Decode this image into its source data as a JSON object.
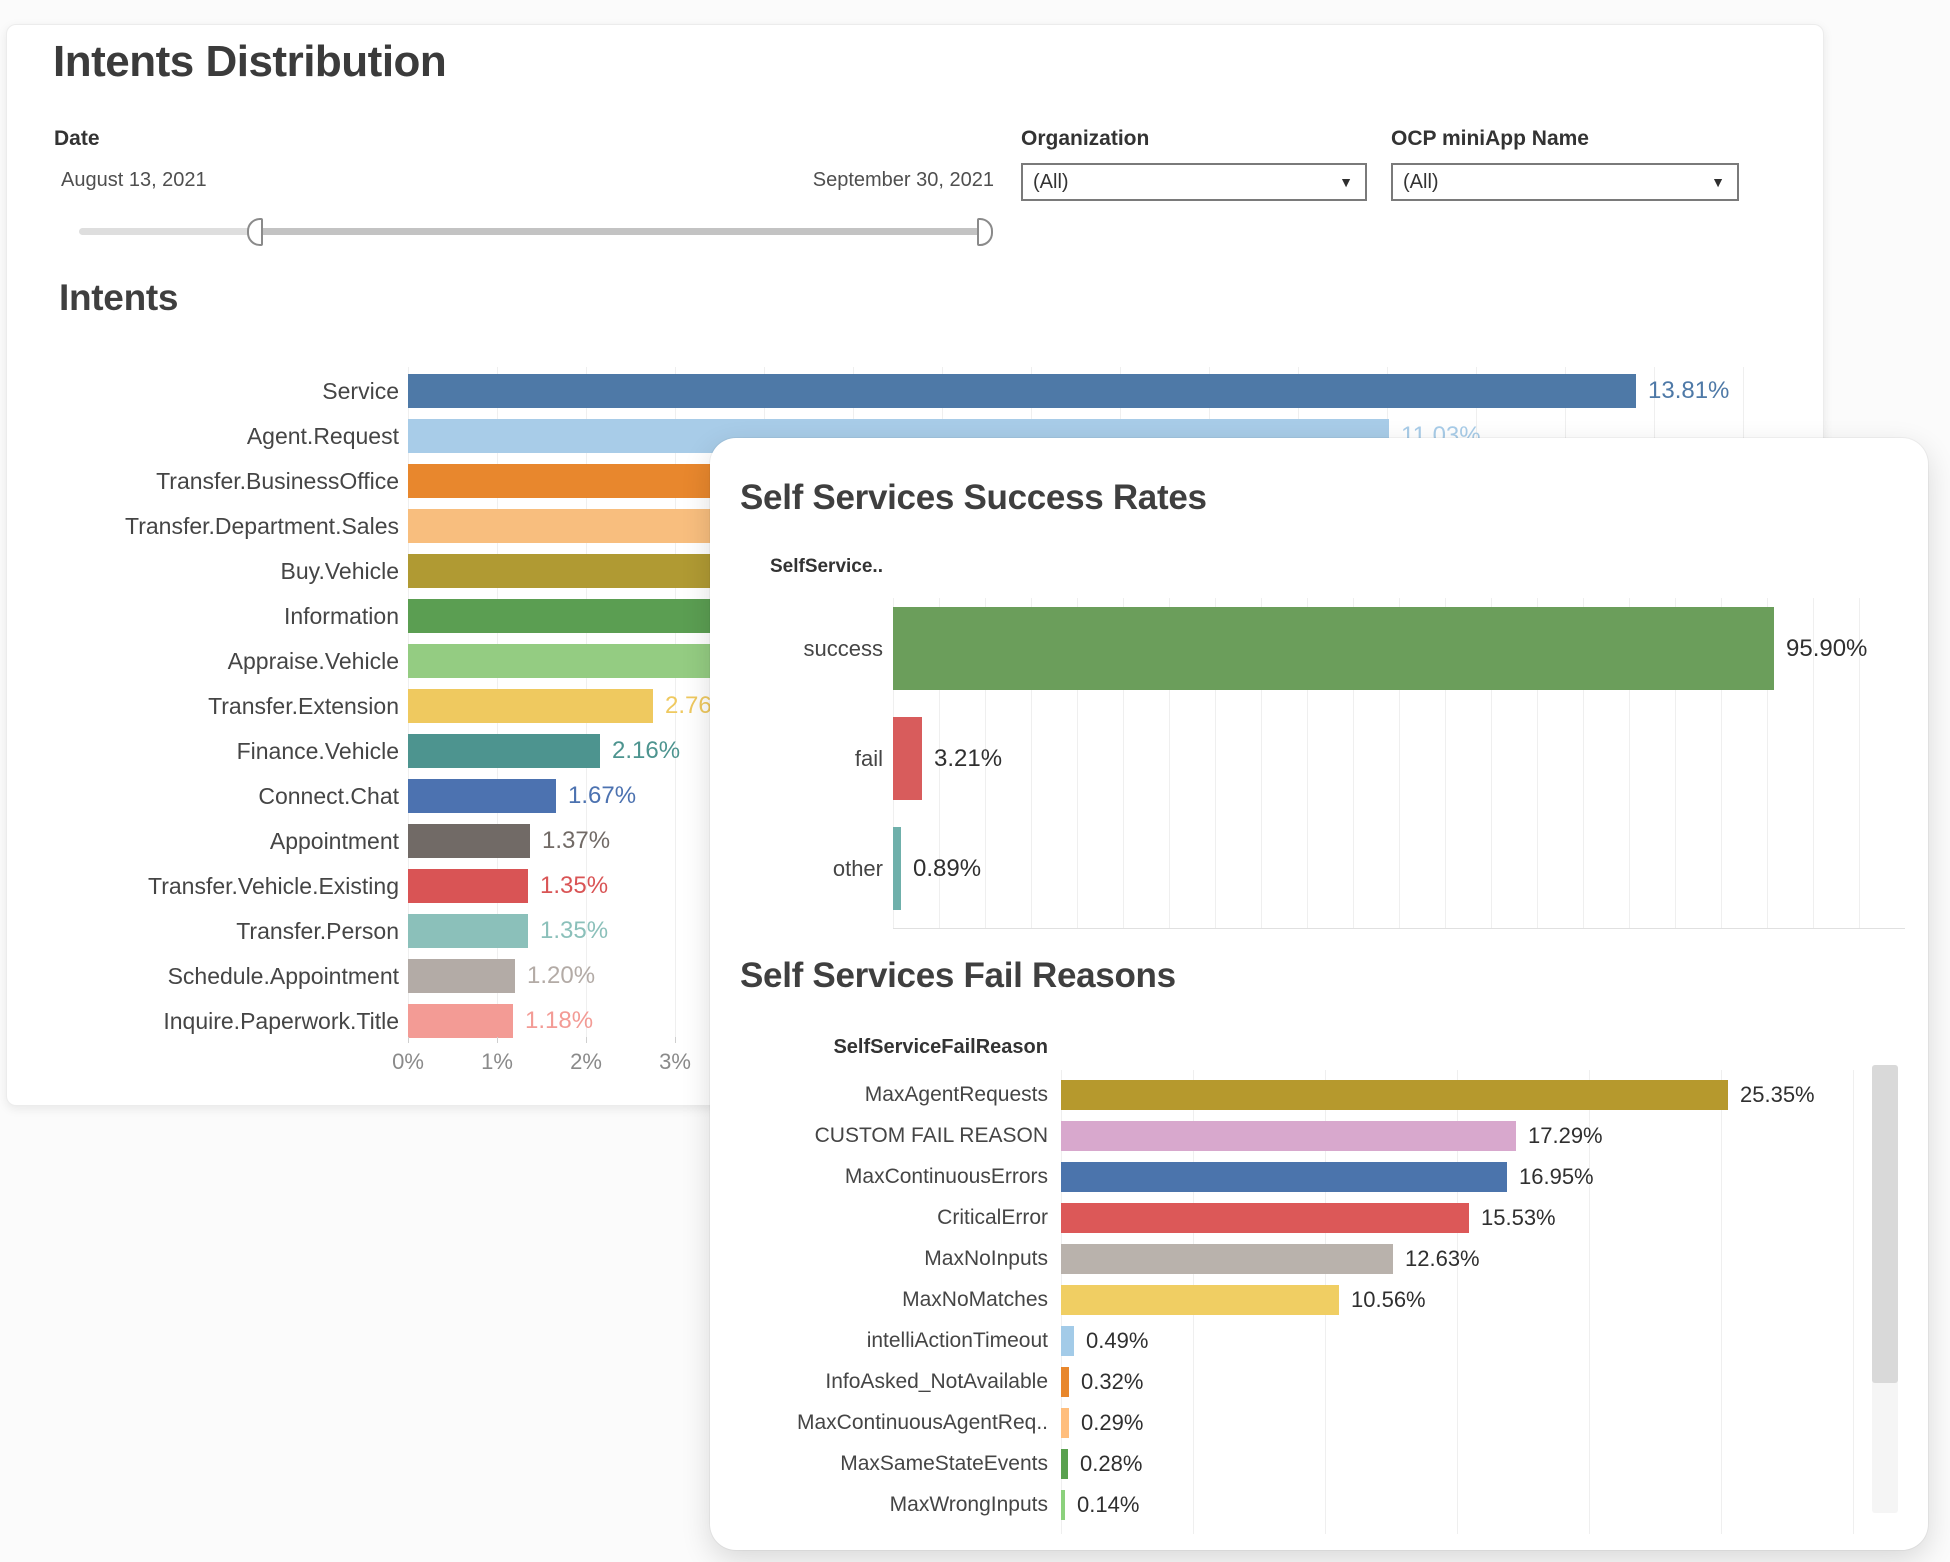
{
  "page": {
    "title": "Intents Distribution"
  },
  "filters": {
    "date": {
      "label": "Date",
      "start": "August 13, 2021",
      "end": "September 30, 2021"
    },
    "organization": {
      "label": "Organization",
      "value": "(All)"
    },
    "ocp_miniapp": {
      "label": "OCP miniApp Name",
      "value": "(All)"
    }
  },
  "chart_data": [
    {
      "id": "intents",
      "type": "bar",
      "orientation": "horizontal",
      "title": "Intents",
      "x_axis": {
        "ticks": [
          "0%",
          "1%",
          "2%",
          "3%"
        ],
        "unit": "percent",
        "grid": true
      },
      "note": "Bars for several categories extend beneath the overlay panel; their values are not visible",
      "bars": [
        {
          "label": "Service",
          "value_pct": 13.81,
          "value_label": "13.81%",
          "color": "#4E79A7"
        },
        {
          "label": "Agent.Request",
          "value_pct": 11.03,
          "value_label": "11.03%",
          "color": "#A8CCE8",
          "value_label_partially_hidden": true
        },
        {
          "label": "Transfer.BusinessOffice",
          "value_pct": null,
          "value_label": "",
          "color": "#E8872D",
          "clipped_by_overlay": true
        },
        {
          "label": "Transfer.Department.Sales",
          "value_pct": null,
          "value_label": "",
          "color": "#F8BE7E",
          "clipped_by_overlay": true
        },
        {
          "label": "Buy.Vehicle",
          "value_pct": null,
          "value_label": "",
          "color": "#B09A33",
          "clipped_by_overlay": true
        },
        {
          "label": "Information",
          "value_pct": null,
          "value_label": "",
          "color": "#5B9E52",
          "clipped_by_overlay": true
        },
        {
          "label": "Appraise.Vehicle",
          "value_pct": null,
          "value_label": "",
          "color": "#94CC82",
          "clipped_by_overlay": true
        },
        {
          "label": "Transfer.Extension",
          "value_pct": 2.76,
          "value_label": "2.76%",
          "color": "#EFC95F",
          "value_label_partially_hidden": true
        },
        {
          "label": "Finance.Vehicle",
          "value_pct": 2.16,
          "value_label": "2.16%",
          "color": "#4D948F"
        },
        {
          "label": "Connect.Chat",
          "value_pct": 1.67,
          "value_label": "1.67%",
          "color": "#4C72B0"
        },
        {
          "label": "Appointment",
          "value_pct": 1.37,
          "value_label": "1.37%",
          "color": "#716A66"
        },
        {
          "label": "Transfer.Vehicle.Existing",
          "value_pct": 1.35,
          "value_label": "1.35%",
          "color": "#D95455"
        },
        {
          "label": "Transfer.Person",
          "value_pct": 1.35,
          "value_label": "1.35%",
          "color": "#8BC0BA"
        },
        {
          "label": "Schedule.Appointment",
          "value_pct": 1.2,
          "value_label": "1.20%",
          "color": "#B3ABA6"
        },
        {
          "label": "Inquire.Paperwork.Title",
          "value_pct": 1.18,
          "value_label": "1.18%",
          "color": "#F39B95"
        }
      ]
    },
    {
      "id": "success_rates",
      "type": "bar",
      "orientation": "horizontal",
      "title": "Self Services Success Rates",
      "column_header": "SelfService..",
      "x_axis": {
        "ticks": [],
        "unit": "percent",
        "grid": true
      },
      "bars": [
        {
          "label": "success",
          "value_pct": 95.9,
          "value_label": "95.90%",
          "color": "#6B9E5B"
        },
        {
          "label": "fail",
          "value_pct": 3.21,
          "value_label": "3.21%",
          "color": "#D85C5C"
        },
        {
          "label": "other",
          "value_pct": 0.89,
          "value_label": "0.89%",
          "color": "#6FB0AB"
        }
      ]
    },
    {
      "id": "fail_reasons",
      "type": "bar",
      "orientation": "horizontal",
      "title": "Self Services Fail Reasons",
      "column_header": "SelfServiceFailReason",
      "x_axis": {
        "ticks": [],
        "unit": "percent",
        "grid": true
      },
      "bars": [
        {
          "label": "MaxAgentRequests",
          "value_pct": 25.35,
          "value_label": "25.35%",
          "color": "#B6992D"
        },
        {
          "label": "CUSTOM FAIL REASON",
          "value_pct": 17.29,
          "value_label": "17.29%",
          "color": "#D8A8CD"
        },
        {
          "label": "MaxContinuousErrors",
          "value_pct": 16.95,
          "value_label": "16.95%",
          "color": "#4B74AC"
        },
        {
          "label": "CriticalError",
          "value_pct": 15.53,
          "value_label": "15.53%",
          "color": "#DC5858"
        },
        {
          "label": "MaxNoInputs",
          "value_pct": 12.63,
          "value_label": "12.63%",
          "color": "#B9B2AC"
        },
        {
          "label": "MaxNoMatches",
          "value_pct": 10.56,
          "value_label": "10.56%",
          "color": "#F0CE63"
        },
        {
          "label": "intelliActionTimeout",
          "value_pct": 0.49,
          "value_label": "0.49%",
          "color": "#A3CBE8"
        },
        {
          "label": "InfoAsked_NotAvailable",
          "value_pct": 0.32,
          "value_label": "0.32%",
          "color": "#E8872C"
        },
        {
          "label": "MaxContinuousAgentReq..",
          "value_pct": 0.29,
          "value_label": "0.29%",
          "color": "#FFBE7D"
        },
        {
          "label": "MaxSameStateEvents",
          "value_pct": 0.28,
          "value_label": "0.28%",
          "color": "#59A14F"
        },
        {
          "label": "MaxWrongInputs",
          "value_pct": 0.14,
          "value_label": "0.14%",
          "color": "#8CD17D"
        }
      ]
    }
  ]
}
